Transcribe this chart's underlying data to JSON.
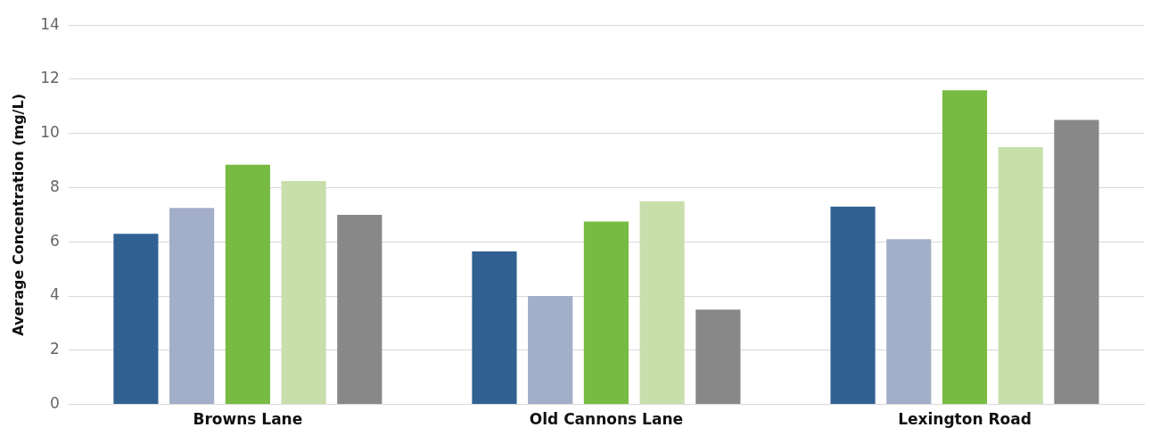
{
  "chart_data": {
    "type": "bar",
    "ylabel": "Average Concentration (mg/L)",
    "categories": [
      "Browns Lane",
      "Old Cannons Lane",
      "Lexington Road"
    ],
    "series": [
      {
        "color": "#306192",
        "values": [
          6.3,
          5.65,
          7.3
        ]
      },
      {
        "color": "#a3aec9",
        "values": [
          7.25,
          4.0,
          6.1
        ]
      },
      {
        "color": "#78bb43",
        "values": [
          8.85,
          6.75,
          11.6
        ]
      },
      {
        "color": "#c8dfac",
        "values": [
          8.25,
          7.5,
          9.5
        ]
      },
      {
        "color": "#888888",
        "values": [
          7.0,
          3.5,
          10.5
        ]
      }
    ],
    "ylim": [
      0,
      14
    ],
    "yticks": [
      0,
      2,
      4,
      6,
      8,
      10,
      12,
      14
    ],
    "grid": "y",
    "legend": false
  }
}
